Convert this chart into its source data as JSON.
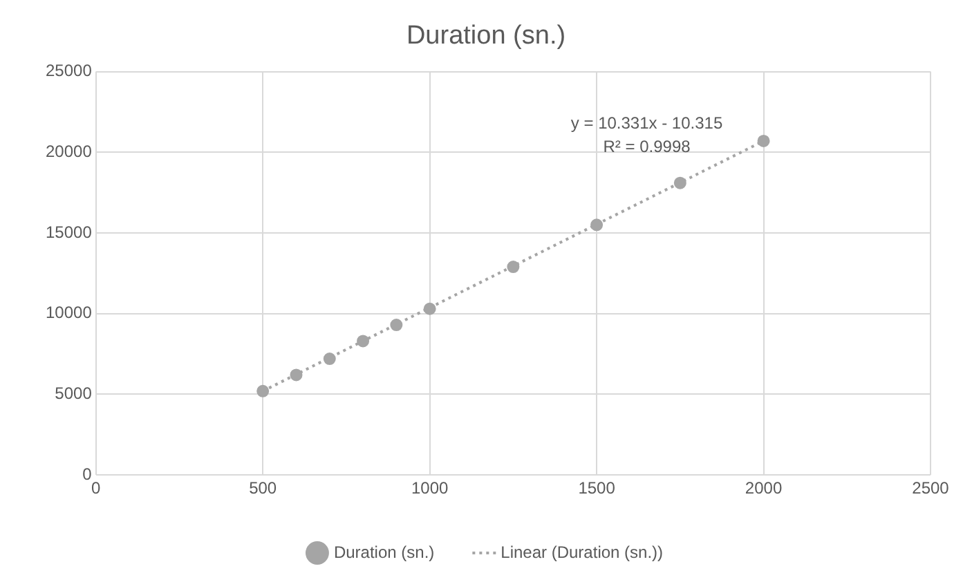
{
  "chart_data": {
    "type": "scatter",
    "title": "Duration (sn.)",
    "series": [
      {
        "type": "scatter",
        "name": "Duration (sn.)",
        "color": "#a5a5a5",
        "marker": "circle",
        "x": [
          500,
          600,
          700,
          800,
          900,
          1000,
          1250,
          1500,
          1750,
          2000
        ],
        "values": [
          5200,
          6200,
          7200,
          8300,
          9300,
          10300,
          12900,
          15500,
          18100,
          20700
        ]
      },
      {
        "type": "line",
        "name": "Linear (Duration (sn.))",
        "color": "#a5a5a5",
        "line_style": "dotted",
        "marker": "none",
        "x": [
          500,
          2000
        ],
        "values": [
          5200,
          20700
        ]
      }
    ],
    "xlim": [
      0,
      2500
    ],
    "xticks": [
      0,
      500,
      1000,
      1500,
      2000,
      2500
    ],
    "ylim": [
      0,
      25000
    ],
    "yticks": [
      0,
      5000,
      10000,
      15000,
      20000,
      25000
    ],
    "grid": true,
    "legend": "bottom",
    "annotations": [
      "y = 10.331x - 10.315",
      "R² = 0.9998"
    ]
  }
}
